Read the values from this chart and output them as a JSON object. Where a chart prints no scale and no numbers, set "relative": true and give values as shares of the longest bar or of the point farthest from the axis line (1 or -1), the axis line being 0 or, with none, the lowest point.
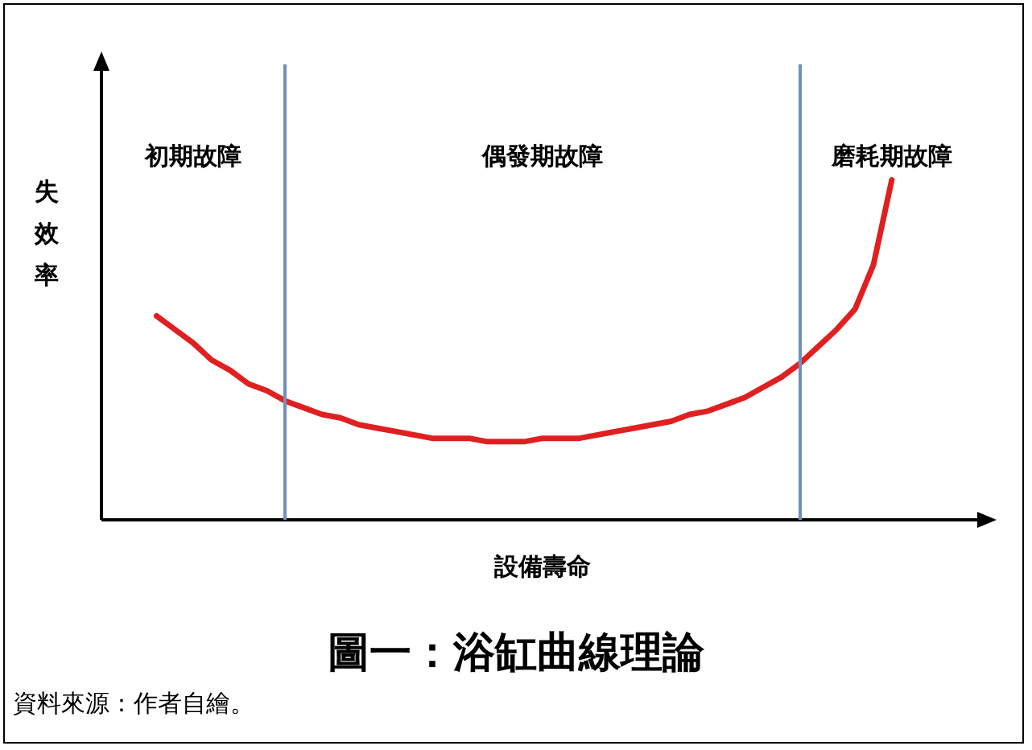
{
  "chart_data": {
    "type": "line",
    "title": "圖一：浴缸曲線理論",
    "xlabel": "設備壽命",
    "ylabel": "失效率",
    "relative": true,
    "grid": false,
    "legend": false,
    "marker": "none",
    "line_style": "solid",
    "categories": [
      null,
      null,
      null,
      null,
      null,
      null,
      null,
      null,
      null,
      null,
      null,
      null,
      null,
      null,
      null,
      null,
      null,
      null,
      null,
      null,
      null,
      null,
      null,
      null,
      null,
      null,
      null,
      null,
      null,
      null,
      null,
      null,
      null,
      null,
      null,
      null,
      null,
      null,
      null,
      null,
      null,
      null,
      null,
      null,
      null,
      null,
      null,
      null,
      null
    ],
    "series": [
      {
        "color": "#e02020",
        "values": [
          null,
          null,
          null,
          0.6,
          0.56,
          0.52,
          0.47,
          0.44,
          0.4,
          0.38,
          0.35,
          0.33,
          0.31,
          0.3,
          0.28,
          0.27,
          0.26,
          0.25,
          0.24,
          0.24,
          0.24,
          0.23,
          0.23,
          0.23,
          0.24,
          0.24,
          0.24,
          0.25,
          0.26,
          0.27,
          0.28,
          0.29,
          0.31,
          0.32,
          0.34,
          0.36,
          0.39,
          0.42,
          0.46,
          0.51,
          0.56,
          0.62,
          0.75,
          1,
          null,
          null,
          null,
          null,
          null
        ]
      }
    ],
    "annotations": [
      "初期故障",
      "偶發期故障",
      "磨耗期故障",
      "資料來源：作者自繪。"
    ]
  }
}
